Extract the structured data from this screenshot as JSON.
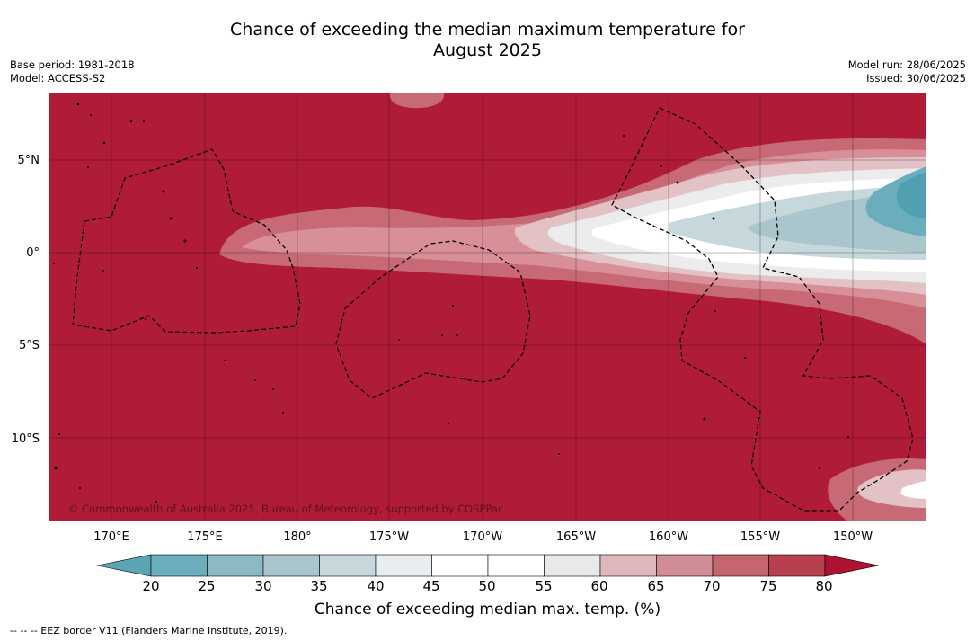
{
  "title": {
    "line1": "Chance of exceeding the median maximum temperature for",
    "line2": "August 2025"
  },
  "meta": {
    "base_period": "Base period: 1981-2018",
    "model": "Model: ACCESS-S2",
    "model_run": "Model run: 28/06/2025",
    "issued": "Issued: 30/06/2025"
  },
  "map": {
    "copyright": "© Commonwealth of Australia 2025, Bureau of Meteorology, supported by COSPPac",
    "background_color": "#b01c38"
  },
  "lat_labels": [
    "5°N",
    "0°",
    "5°S",
    "10°S"
  ],
  "lon_labels": [
    "170°E",
    "175°E",
    "180°",
    "175°W",
    "170°W",
    "165°W",
    "160°W",
    "155°W",
    "150°W"
  ],
  "colorbar": {
    "ticks": [
      "20",
      "25",
      "30",
      "35",
      "40",
      "45",
      "50",
      "55",
      "60",
      "65",
      "70",
      "75",
      "80"
    ],
    "colors": [
      "#6aaebd",
      "#8bb9c4",
      "#a9c6cc",
      "#c6d8dc",
      "#e8eef0",
      "#ffffff",
      "#ffffff",
      "#e9e9e9",
      "#dfb8be",
      "#d18d95",
      "#c46570",
      "#b83f4f"
    ],
    "under_color": "#5aa4b4",
    "over_color": "#ad1233",
    "label": "Chance of exceeding median max. temp. (%)"
  },
  "footer": "--  --  -- EEZ border V11 (Flanders Marine Institute, 2019)."
}
